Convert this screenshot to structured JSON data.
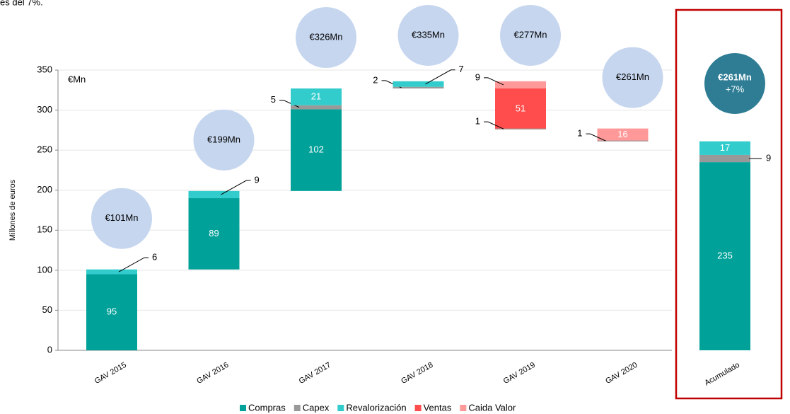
{
  "caption": "es del 7%.",
  "chart_data": {
    "type": "waterfall",
    "y_label": "Millones de euros",
    "unit_label": "€Mn",
    "categories": [
      "GAV 2015",
      "GAV 2016",
      "GAV 2017",
      "GAV 2018",
      "GAV 2019",
      "GAV 2020",
      "Acumulado"
    ],
    "series": [
      {
        "name": "Compras",
        "color": "#00a199",
        "values": [
          95,
          89,
          102,
          null,
          null,
          null,
          235
        ]
      },
      {
        "name": "Capex",
        "color": "#999999",
        "values": [
          null,
          null,
          5,
          2,
          1,
          1,
          9
        ]
      },
      {
        "name": "Revalorización",
        "color": "#33cccc",
        "values": [
          6,
          9,
          21,
          7,
          null,
          null,
          17
        ]
      },
      {
        "name": "Ventas",
        "color": "#ff4d4d",
        "values": [
          null,
          null,
          null,
          null,
          -51,
          null,
          null
        ],
        "value_labels": [
          null,
          null,
          null,
          null,
          "51",
          null,
          null
        ]
      },
      {
        "name": "Caida Valor",
        "color": "#ff9999",
        "values": [
          null,
          null,
          null,
          null,
          -9,
          -16,
          null
        ],
        "value_labels": [
          null,
          null,
          null,
          null,
          "9",
          "16",
          null
        ]
      }
    ],
    "total_labels": [
      "€101Mn",
      "€199Mn",
      "€326Mn",
      "€335Mn",
      "€277Mn",
      "€261Mn",
      "€261Mn"
    ],
    "highlight": "Acumulado",
    "highlight_note": "+7%",
    "ylim": [
      0,
      350
    ],
    "yticks": [
      0,
      50,
      100,
      150,
      200,
      250,
      300,
      350
    ],
    "grid": true
  }
}
